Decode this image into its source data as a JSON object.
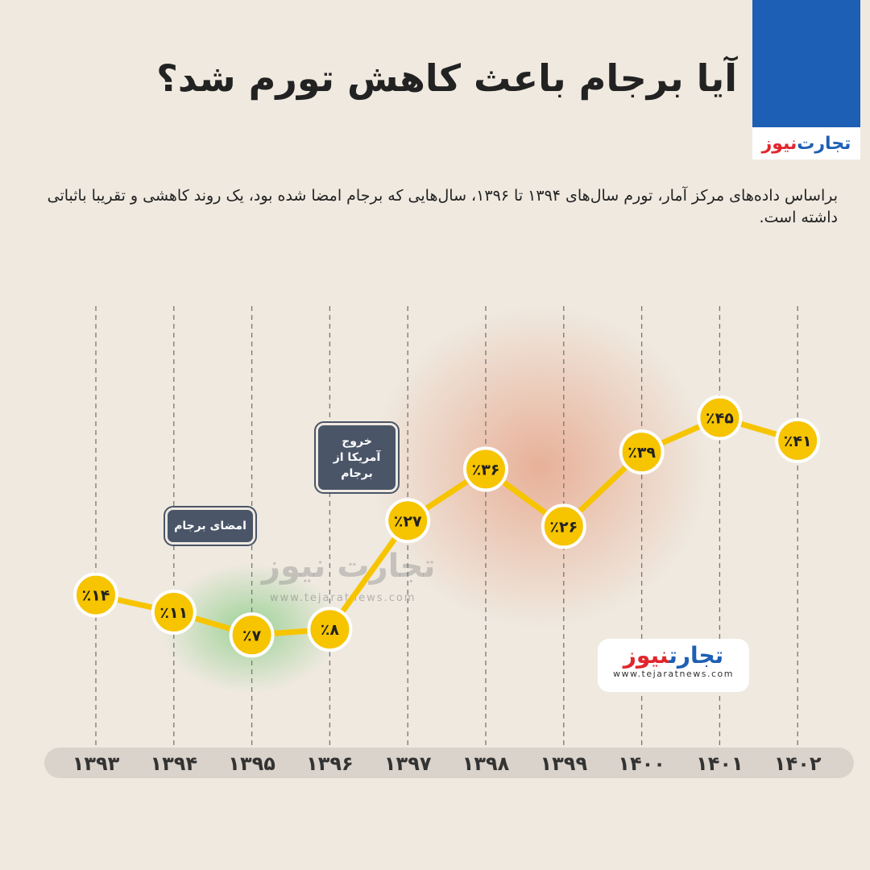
{
  "brand": {
    "name_part1": "تجارت",
    "name_part2": "نیوز",
    "url": "www.tejaratnews.com",
    "blue": "#1d5fb4",
    "red": "#e0262c"
  },
  "title": "آیا برجام باعث کاهش تورم شد؟",
  "subtitle": "براساس داده‌های مرکز آمار، تورم سال‌های ۱۳۹۴ تا ۱۳۹۶، سال‌هایی که برجام امضا شده بود، یک روند کاهشی و تقریبا باثباتی داشته است.",
  "annotations": {
    "signing": "امضای برجام",
    "exit": "خروج آمریکا از برجام"
  },
  "chart_data": {
    "type": "line",
    "categories": [
      "۱۳۹۳",
      "۱۳۹۴",
      "۱۳۹۵",
      "۱۳۹۶",
      "۱۳۹۷",
      "۱۳۹۸",
      "۱۳۹۹",
      "۱۴۰۰",
      "۱۴۰۱",
      "۱۴۰۲"
    ],
    "x": [
      1393,
      1394,
      1395,
      1396,
      1397,
      1398,
      1399,
      1400,
      1401,
      1402
    ],
    "values": [
      14,
      11,
      7,
      8,
      27,
      36,
      26,
      39,
      45,
      41
    ],
    "data_labels": [
      "٪۱۴",
      "٪۱۱",
      "٪۷",
      "٪۸",
      "٪۲۷",
      "٪۳۶",
      "٪۲۶",
      "٪۳۹",
      "٪۴۵",
      "٪۴۱"
    ],
    "line_color": "#f7c400",
    "grid": "vertical dashed"
  }
}
